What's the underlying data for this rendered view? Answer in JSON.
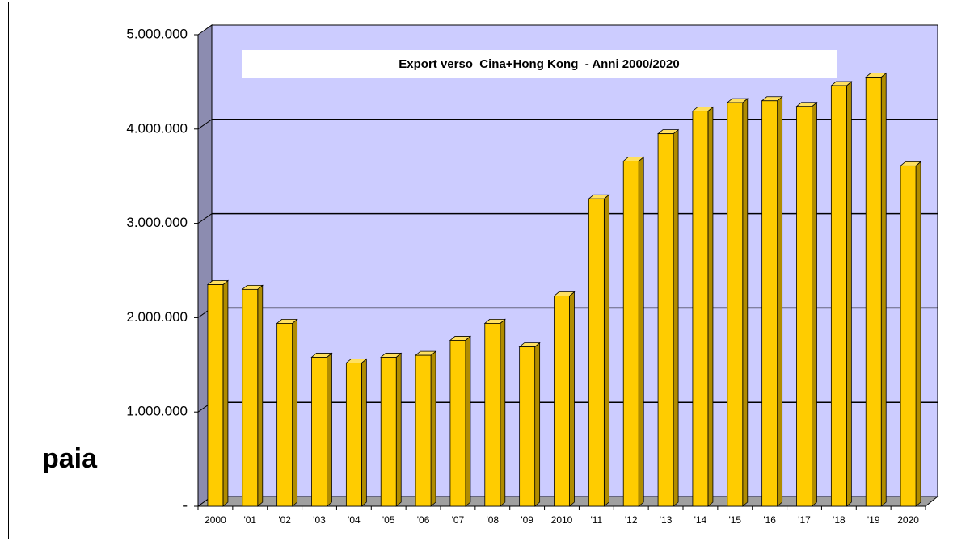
{
  "chart_data": {
    "type": "bar",
    "title": "Export verso  Cina+Hong Kong  - Anni 2000/2020",
    "y_label": "paia",
    "categories": [
      "2000",
      "'01",
      "'02",
      "'03",
      "'04",
      "'05",
      "'06",
      "'07",
      "'08",
      "'09",
      "2010",
      "'11",
      "'12",
      "'13",
      "'14",
      "'15",
      "'16",
      "'17",
      "'18",
      "'19",
      "2020"
    ],
    "values": [
      2350000,
      2300000,
      1940000,
      1580000,
      1520000,
      1580000,
      1600000,
      1760000,
      1940000,
      1690000,
      2230000,
      3260000,
      3660000,
      3950000,
      4190000,
      4280000,
      4300000,
      4240000,
      4460000,
      4550000,
      3610000
    ],
    "color": "#ffcc00",
    "ylim": [
      0,
      5000000
    ],
    "yticks": [
      {
        "value": 0,
        "label": "-"
      },
      {
        "value": 1000000,
        "label": "1.000.000"
      },
      {
        "value": 2000000,
        "label": "2.000.000"
      },
      {
        "value": 3000000,
        "label": "3.000.000"
      },
      {
        "value": 4000000,
        "label": "4.000.000"
      },
      {
        "value": 5000000,
        "label": "5.000.000"
      }
    ],
    "grid": true
  }
}
